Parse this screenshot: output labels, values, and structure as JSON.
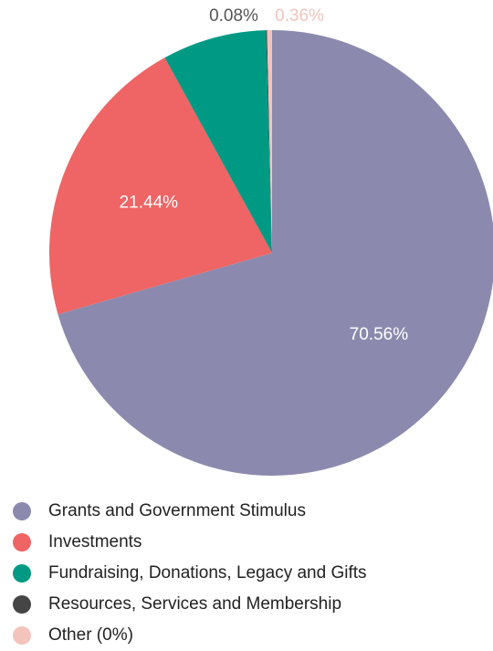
{
  "chart_data": {
    "type": "pie",
    "categories": [
      "Grants and Government Stimulus",
      "Investments",
      "Fundraising, Donations, Legacy and Gifts",
      "Resources, Services and Membership",
      "Other"
    ],
    "legend_labels": [
      "Grants and Government Stimulus",
      "Investments",
      "Fundraising, Donations, Legacy and Gifts",
      "Resources, Services and Membership",
      "Other (0%)"
    ],
    "values": [
      70.56,
      21.44,
      7.56,
      0.08,
      0.36
    ],
    "data_labels": [
      "70.56%",
      "21.44%",
      "",
      "0.08%",
      "0.36%"
    ],
    "colors": [
      "#8b8aae",
      "#ef6464",
      "#009a84",
      "#454545",
      "#f2c4bc"
    ],
    "label_colors": [
      "#ffffff",
      "#ffffff",
      "#ffffff",
      "#555555",
      "#f2c4bc"
    ],
    "legend_position": "bottom-left",
    "title": ""
  }
}
